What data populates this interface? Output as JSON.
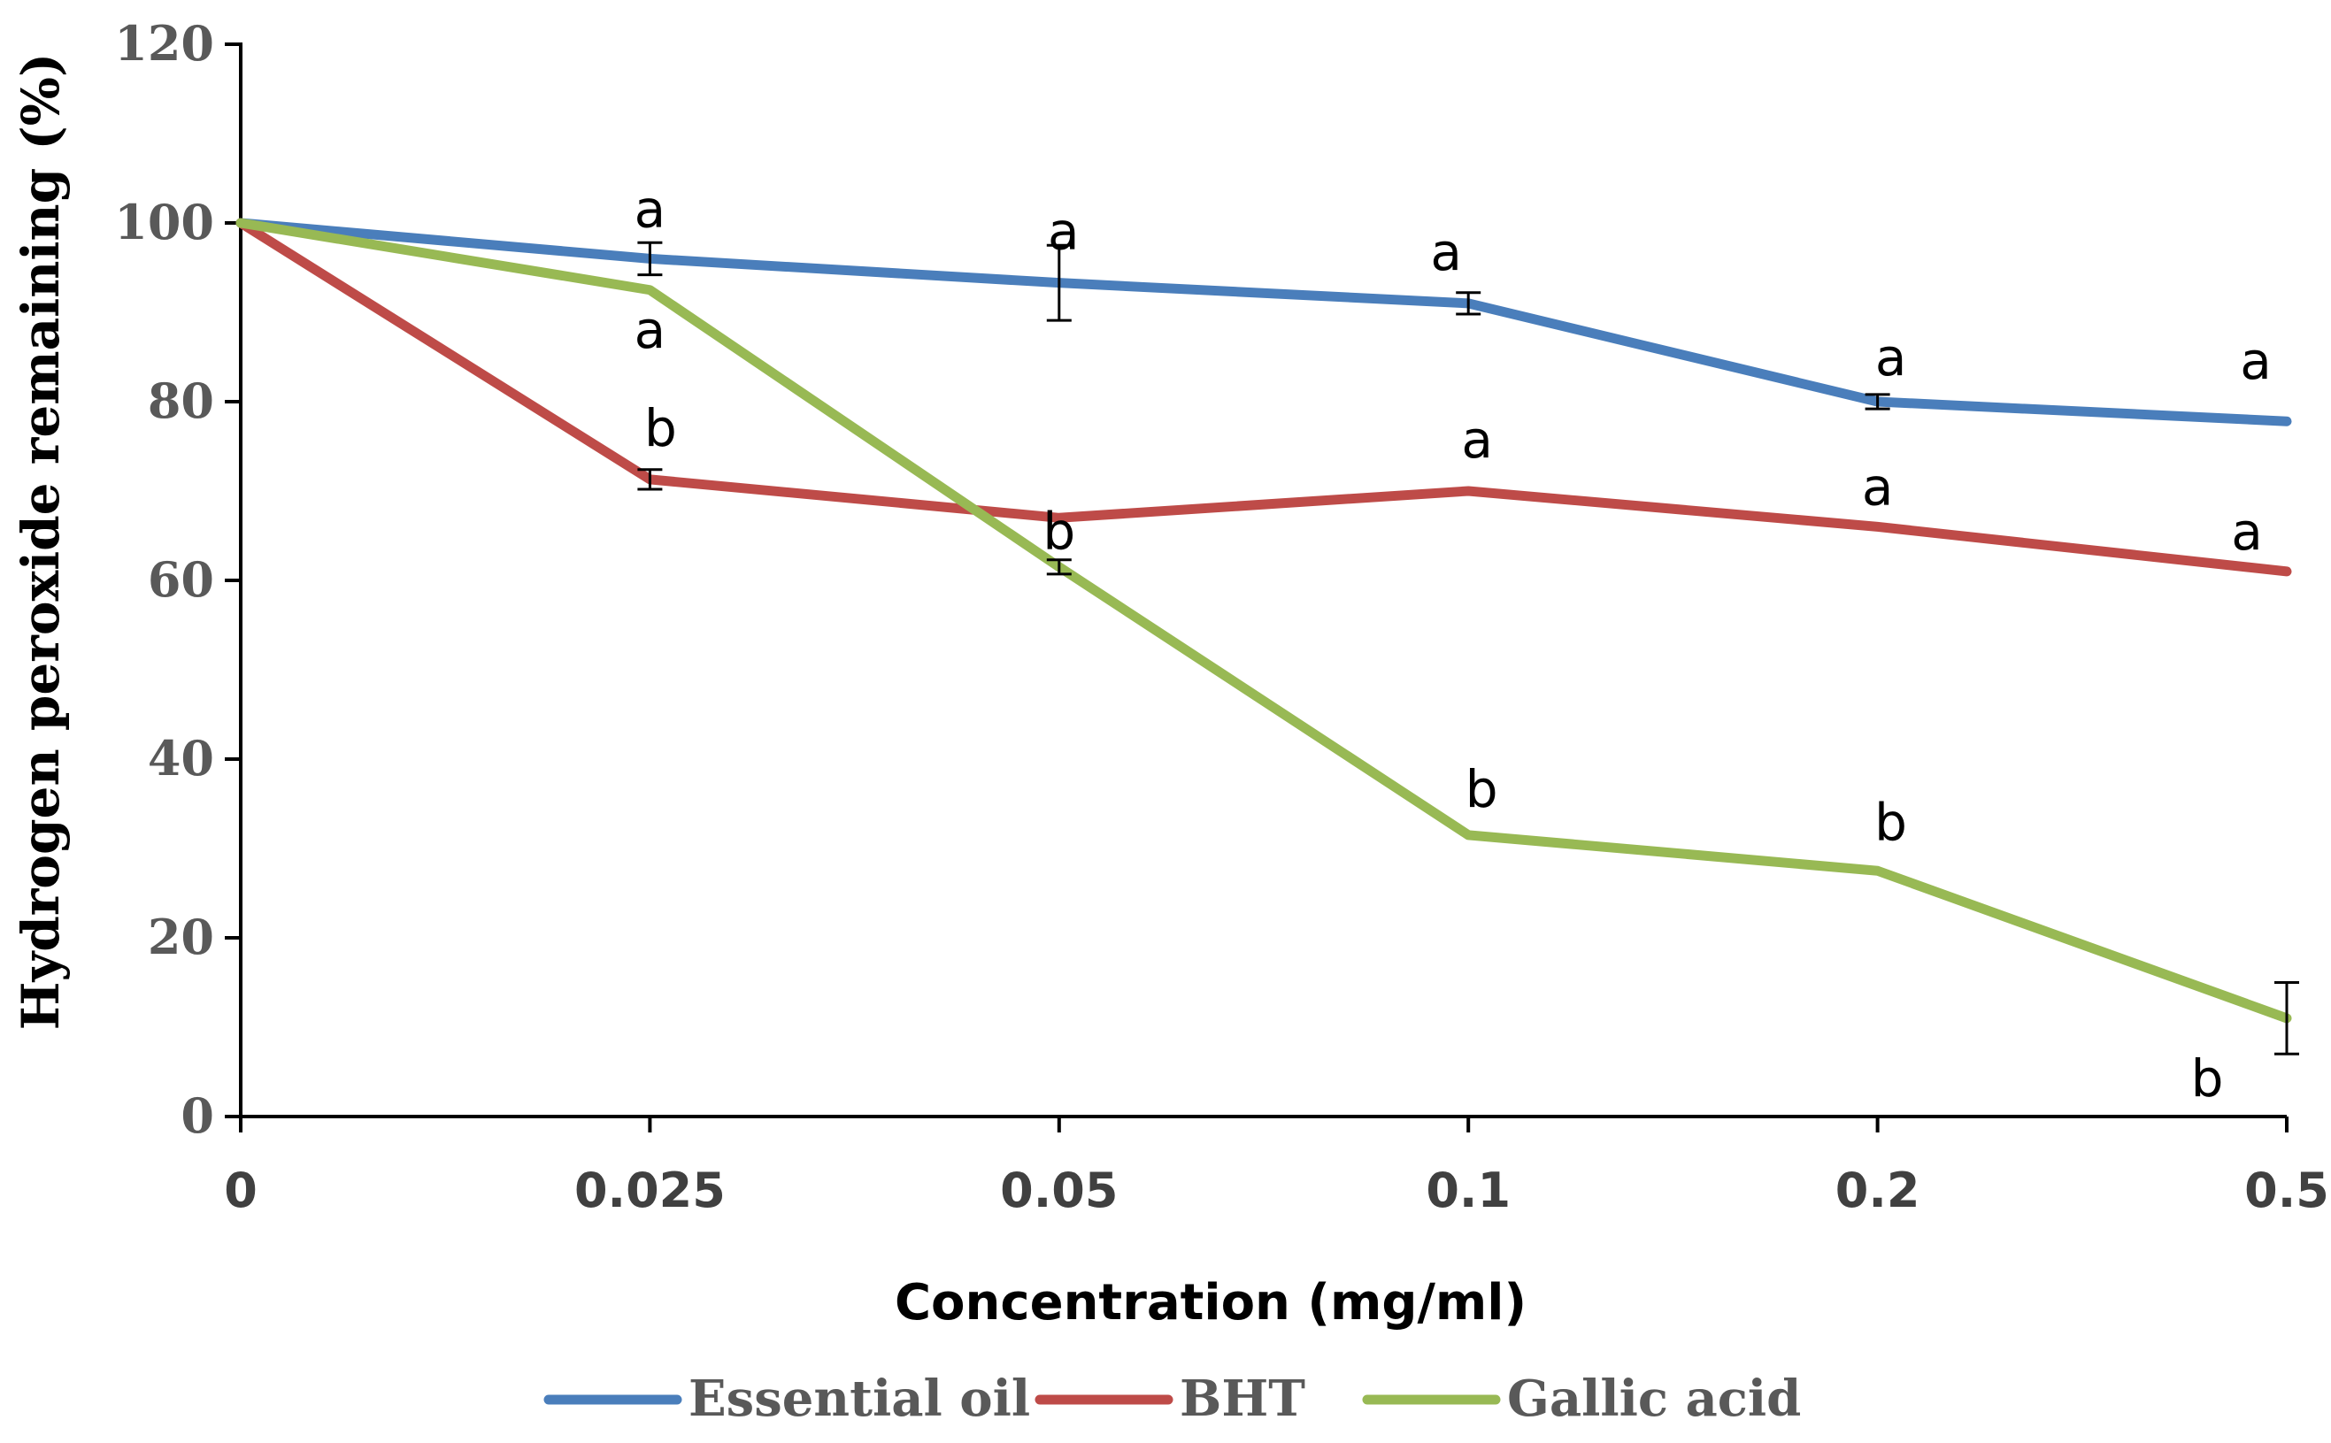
{
  "chart_data": {
    "type": "line",
    "title": "",
    "xlabel": "Concentration (mg/ml)",
    "ylabel": "Hydrogen peroxide remaining (%)",
    "categories": [
      "0",
      "0.025",
      "0.05",
      "0.1",
      "0.2",
      "0.5"
    ],
    "ylim": [
      0,
      120
    ],
    "yticks": [
      "0",
      "20",
      "40",
      "60",
      "80",
      "100",
      "120"
    ],
    "grid": false,
    "legend_position": "bottom",
    "series": [
      {
        "name": "Essential oil",
        "color": "#4a7ebb",
        "values": [
          100,
          96,
          93.3,
          91,
          80,
          77.8
        ],
        "error": [
          0,
          1.8,
          4.2,
          1.2,
          0.8,
          0
        ],
        "letters": [
          "",
          "a",
          "a",
          "a",
          "a",
          "a"
        ]
      },
      {
        "name": "BHT",
        "color": "#be4b48",
        "values": [
          100,
          71.3,
          67,
          70,
          66,
          61
        ],
        "error": [
          0,
          1.1,
          0,
          0,
          0,
          0
        ],
        "letters": [
          "",
          "b",
          "b",
          "a",
          "a",
          "a"
        ]
      },
      {
        "name": "Gallic acid",
        "color": "#98b954",
        "values": [
          100,
          92.5,
          61.5,
          31.5,
          27.5,
          11
        ],
        "error": [
          0,
          0,
          0.8,
          0,
          0,
          4
        ],
        "letters": [
          "",
          "a",
          "",
          "b",
          "b",
          "b"
        ]
      }
    ]
  }
}
